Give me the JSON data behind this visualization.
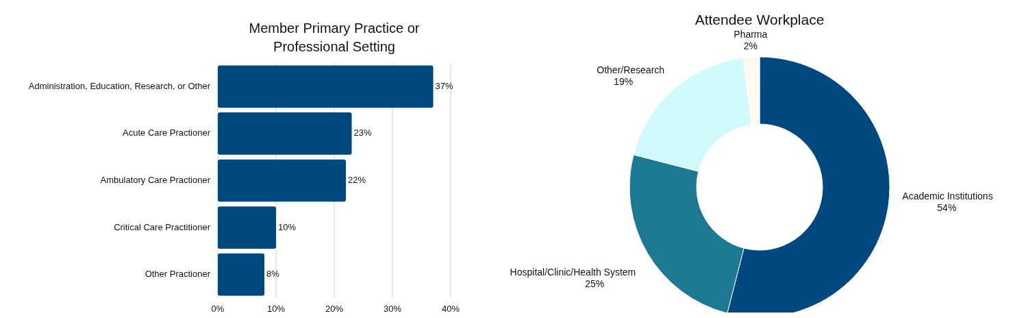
{
  "chart_data": [
    {
      "type": "bar",
      "orientation": "horizontal",
      "title": "Member Primary Practice or Professional Setting",
      "categories": [
        "Administration, Education, Research, or Other",
        "Acute Care Practioner",
        "Ambulatory Care Practioner",
        "Critical Care Practitioner",
        "Other Practioner"
      ],
      "values": [
        37,
        23,
        22,
        10,
        8
      ],
      "color": "#004880",
      "value_labels": [
        "37%",
        "23%",
        "22%",
        "10%",
        "8%"
      ],
      "xlim": [
        0,
        40
      ],
      "xticks": [
        {
          "value": 0,
          "label": "0%"
        },
        {
          "value": 10,
          "label": "10%"
        },
        {
          "value": 20,
          "label": "20%"
        },
        {
          "value": 30,
          "label": "30%"
        },
        {
          "value": 40,
          "label": "40%"
        }
      ],
      "grid": "x"
    },
    {
      "type": "donut",
      "title": "Attendee Workplace",
      "categories": [
        "Academic Institutions",
        "Hospital/Clinic/Health System",
        "Other/Research",
        "Pharma"
      ],
      "values": [
        54,
        25,
        19,
        2
      ],
      "colors": [
        "#004880",
        "#1c7893",
        "#d0fafc",
        "#fffaf0"
      ],
      "value_labels": [
        "54%",
        "25%",
        "19%",
        "2%"
      ]
    }
  ]
}
